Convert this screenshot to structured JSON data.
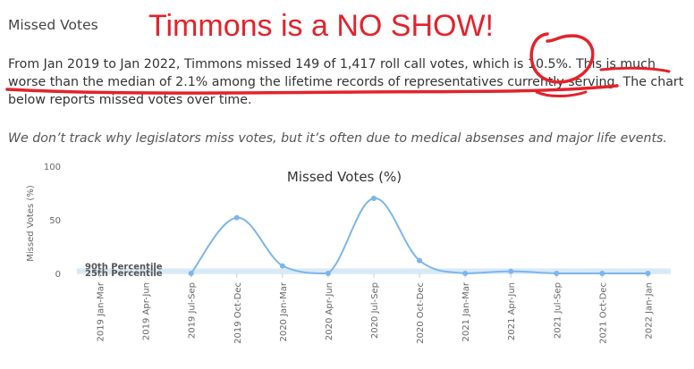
{
  "header": {
    "section_title": "Missed Votes",
    "overlay_title": "Timmons is a NO SHOW!"
  },
  "summary": {
    "p1": "From Jan 2019 to Jan 2022, Timmons missed 149 of 1,417 roll call votes, which is 10.5%. This is much",
    "p2": "worse than the median of 2.1% among the lifetime records of representatives currently serving. The chart",
    "p3": "below reports missed votes over time."
  },
  "note": "We don’t track why legislators miss votes, but it’s often due to medical absenses and major life events.",
  "colors": {
    "line": "#7cb5ec",
    "annotation": "#e4222b",
    "band": "#d6e8f5"
  },
  "chart_data": {
    "type": "line",
    "title": "Missed Votes (%)",
    "ylabel": "Missed Votes (%)",
    "ylim": [
      0,
      100
    ],
    "yticks": [
      0,
      50,
      100
    ],
    "categories": [
      "2019 Jan-Mar",
      "2019 Apr-Jun",
      "2019 Jul-Sep",
      "2019 Oct-Dec",
      "2020 Jan-Mar",
      "2020 Apr-Jun",
      "2020 Jul-Sep",
      "2020 Oct-Dec",
      "2021 Jan-Mar",
      "2021 Apr-Jun",
      "2021 Jul-Sep",
      "2021 Oct-Dec",
      "2022 Jan-Jan"
    ],
    "values": [
      null,
      null,
      0,
      52,
      7,
      0,
      70,
      12,
      0,
      2,
      0,
      0,
      0
    ],
    "percentile_bands": [
      {
        "label": "90th Percentile",
        "value": 3
      },
      {
        "label": "25th Percentile",
        "value": 1
      }
    ]
  }
}
